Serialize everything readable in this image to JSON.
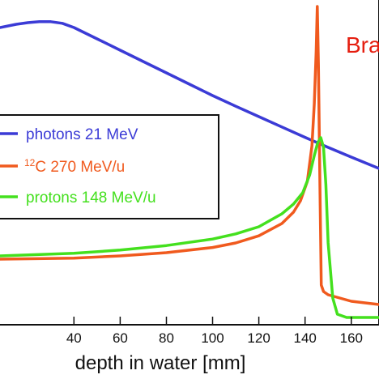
{
  "chart_data": {
    "type": "line",
    "title": "",
    "xlabel": "depth in water [mm]",
    "ylabel": "",
    "xlim": [
      8,
      172
    ],
    "ylim": [
      0,
      1.0
    ],
    "xticks": [
      40,
      60,
      80,
      100,
      120,
      140,
      160
    ],
    "tick_labels": [
      "40",
      "60",
      "80",
      "100",
      "120",
      "140",
      "160"
    ],
    "grid": false,
    "legend_position": "left",
    "annotation": {
      "text": "Bra",
      "color": "#e51e10"
    },
    "series": [
      {
        "name": "photons 21 MeV",
        "color": "#3b3bd6",
        "x": [
          8,
          15,
          20,
          25,
          30,
          35,
          40,
          50,
          60,
          70,
          80,
          90,
          100,
          110,
          120,
          130,
          140,
          150,
          160,
          172
        ],
        "y": [
          0.915,
          0.925,
          0.93,
          0.933,
          0.933,
          0.928,
          0.915,
          0.88,
          0.845,
          0.81,
          0.775,
          0.74,
          0.705,
          0.672,
          0.64,
          0.608,
          0.576,
          0.545,
          0.515,
          0.48
        ]
      },
      {
        "name": "12C 270 MeV/u",
        "color": "#f05a1e",
        "x": [
          8,
          40,
          60,
          80,
          100,
          110,
          120,
          130,
          135,
          138,
          141,
          143,
          144,
          144.8,
          145.3,
          145.8,
          146.5,
          147,
          148,
          150,
          155,
          160,
          172
        ],
        "y": [
          0.2,
          0.203,
          0.21,
          0.22,
          0.236,
          0.25,
          0.272,
          0.31,
          0.345,
          0.38,
          0.44,
          0.55,
          0.68,
          0.84,
          0.98,
          0.8,
          0.4,
          0.12,
          0.1,
          0.09,
          0.08,
          0.07,
          0.06
        ]
      },
      {
        "name": "protons 148 MeV/u",
        "color": "#44e01e",
        "x": [
          8,
          40,
          60,
          80,
          100,
          110,
          120,
          130,
          135,
          139,
          142,
          144,
          145.5,
          146.8,
          148,
          149,
          150,
          152,
          154,
          156,
          158,
          172
        ],
        "y": [
          0.21,
          0.218,
          0.228,
          0.242,
          0.262,
          0.278,
          0.3,
          0.34,
          0.37,
          0.405,
          0.46,
          0.52,
          0.56,
          0.575,
          0.545,
          0.43,
          0.25,
          0.08,
          0.03,
          0.025,
          0.02,
          0.02
        ]
      }
    ]
  }
}
